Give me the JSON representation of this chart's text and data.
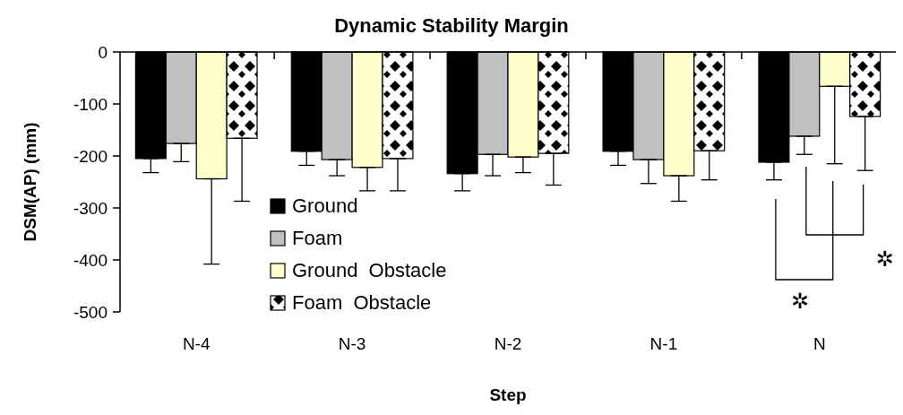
{
  "chart_data": {
    "type": "bar",
    "title": "Dynamic Stability Margin",
    "xlabel": "Step",
    "ylabel": "DSM(AP) (mm)",
    "categories": [
      "N-4",
      "N-3",
      "N-2",
      "N-1",
      "N"
    ],
    "series": [
      {
        "name": "Ground",
        "color": "#000000",
        "values": [
          -205,
          -191,
          -234,
          -191,
          -212
        ],
        "errors": [
          [
            -232,
            -205
          ],
          [
            -218,
            -191
          ],
          [
            -267,
            -234
          ],
          [
            -218,
            -191
          ],
          [
            -246,
            -212
          ]
        ]
      },
      {
        "name": "Foam",
        "color": "#c0c0c0",
        "values": [
          -176,
          -207,
          -197,
          -207,
          -162
        ],
        "errors": [
          [
            -211,
            -176
          ],
          [
            -238,
            -207
          ],
          [
            -238,
            -197
          ],
          [
            -253,
            -207
          ],
          [
            -197,
            -162
          ]
        ]
      },
      {
        "name": "Ground  Obstacle",
        "color": "#ffffcc",
        "values": [
          -244,
          -222,
          -202,
          -238,
          -66
        ],
        "errors": [
          [
            -408,
            -244
          ],
          [
            -267,
            -222
          ],
          [
            -232,
            -202
          ],
          [
            -287,
            -238
          ],
          [
            -215,
            -66
          ]
        ]
      },
      {
        "name": "Foam  Obstacle",
        "color": "#000000",
        "values": [
          -166,
          -205,
          -195,
          -190,
          -124
        ],
        "errors": [
          [
            -287,
            -166
          ],
          [
            -267,
            -205
          ],
          [
            -256,
            -195
          ],
          [
            -246,
            -190
          ],
          [
            -228,
            -124
          ]
        ]
      }
    ],
    "ylim": [
      -500,
      0
    ],
    "yticks": [
      -500,
      -400,
      -300,
      -200,
      -100,
      0
    ],
    "grid": false,
    "legend": "bottom left",
    "annotations": [
      "✲",
      "✲"
    ]
  }
}
